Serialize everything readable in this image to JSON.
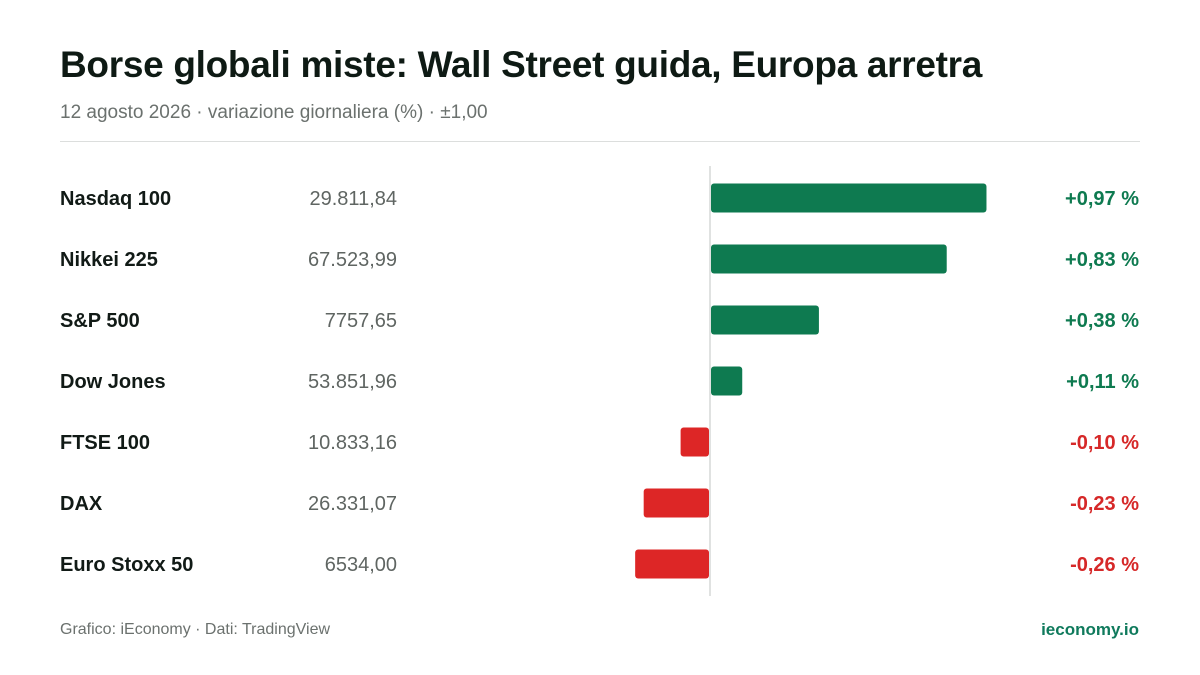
{
  "header": {
    "title": "Borse globali miste: Wall Street guida, Europa arretra",
    "subtitle": "12 agosto 2026 · variazione giornaliera (%) · ±1,00"
  },
  "footer": {
    "credit": "Grafico: iEconomy · Dati: TradingView",
    "brand": "ieconomy.io"
  },
  "colors": {
    "positive": "#0e7a50",
    "negative": "#dd2626",
    "positive_text": "#0e7a50",
    "negative_text": "#d62828",
    "axis": "#d6d8d7"
  },
  "chart_data": {
    "type": "bar",
    "orientation": "horizontal",
    "categories": [
      "Nasdaq 100",
      "Nikkei 225",
      "S&P 500",
      "Dow Jones",
      "FTSE 100",
      "DAX",
      "Euro Stoxx 50"
    ],
    "levels": [
      "29.811,84",
      "67.523,99",
      "7757,65",
      "53.851,96",
      "10.833,16",
      "26.331,07",
      "6534,00"
    ],
    "values": [
      0.97,
      0.83,
      0.38,
      0.11,
      -0.1,
      -0.23,
      -0.26
    ],
    "value_labels": [
      "+0,97 %",
      "+0,83 %",
      "+0,38 %",
      "+0,11 %",
      "-0,10 %",
      "-0,23 %",
      "-0,26 %"
    ],
    "xlim": [
      -1.0,
      1.0
    ],
    "unit": "%",
    "grid": false,
    "legend": "none"
  }
}
